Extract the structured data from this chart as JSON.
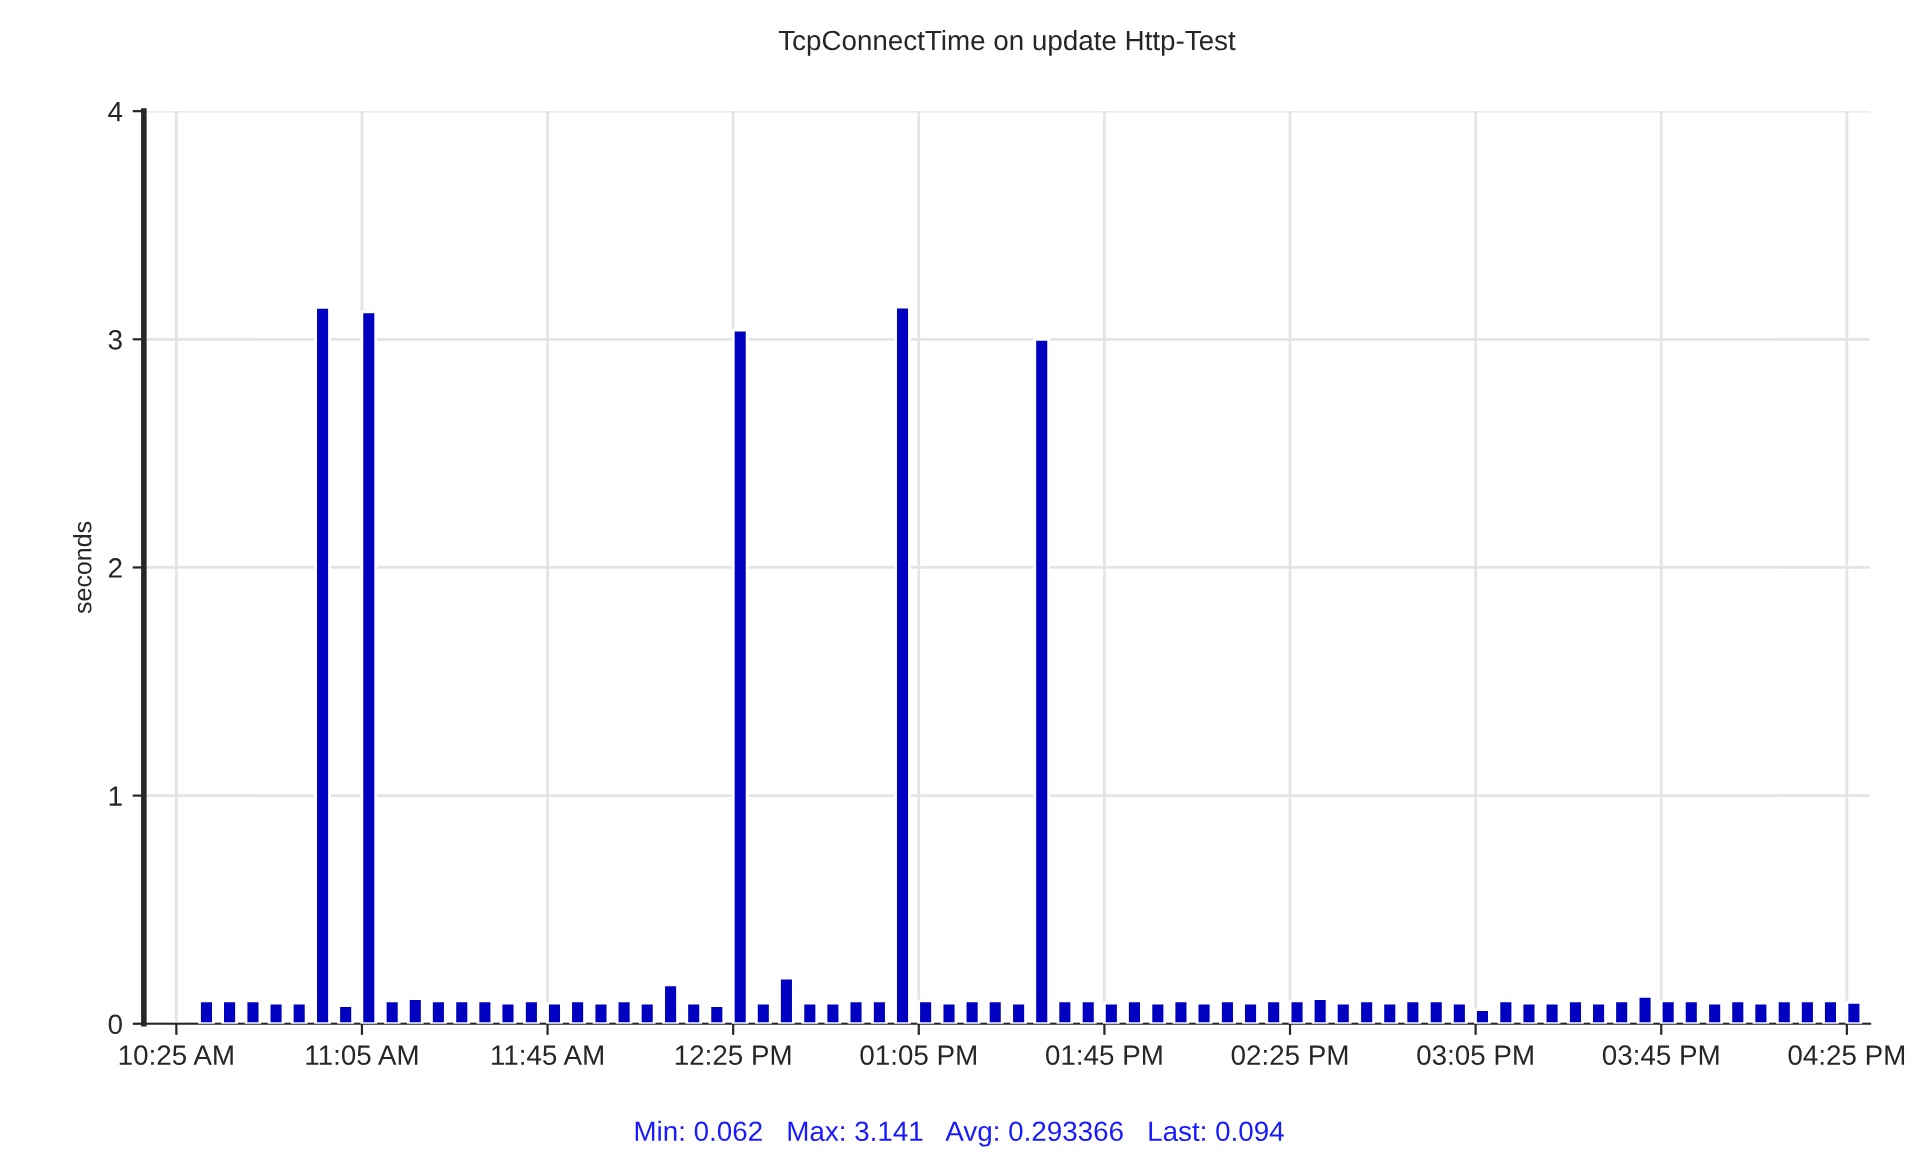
{
  "chart_data": {
    "type": "bar",
    "title": "TcpConnectTime on update Http-Test",
    "ylabel": "seconds",
    "x": [
      10.5,
      10.583,
      10.667,
      10.75,
      10.833,
      10.917,
      11.0,
      11.083,
      11.167,
      11.25,
      11.333,
      11.417,
      11.5,
      11.583,
      11.667,
      11.75,
      11.833,
      11.917,
      12.0,
      12.083,
      12.167,
      12.25,
      12.333,
      12.417,
      12.5,
      12.583,
      12.667,
      12.75,
      12.833,
      12.917,
      13.0,
      13.083,
      13.167,
      13.25,
      13.333,
      13.417,
      13.5,
      13.583,
      13.667,
      13.75,
      13.833,
      13.917,
      14.0,
      14.083,
      14.167,
      14.25,
      14.333,
      14.417,
      14.5,
      14.583,
      14.667,
      14.75,
      14.833,
      14.917,
      15.0,
      15.083,
      15.167,
      15.25,
      15.333,
      15.417,
      15.5,
      15.583,
      15.667,
      15.75,
      15.833,
      15.917,
      16.0,
      16.083,
      16.167,
      16.25,
      16.333,
      16.417
    ],
    "values": [
      0.1,
      0.1,
      0.1,
      0.09,
      0.09,
      3.14,
      0.08,
      3.12,
      0.1,
      0.11,
      0.1,
      0.1,
      0.1,
      0.09,
      0.1,
      0.09,
      0.1,
      0.09,
      0.1,
      0.09,
      0.17,
      0.09,
      0.08,
      3.04,
      0.09,
      0.2,
      0.09,
      0.09,
      0.1,
      0.1,
      3.141,
      0.1,
      0.09,
      0.1,
      0.1,
      0.09,
      3.0,
      0.1,
      0.1,
      0.09,
      0.1,
      0.09,
      0.1,
      0.09,
      0.1,
      0.09,
      0.1,
      0.1,
      0.11,
      0.09,
      0.1,
      0.09,
      0.1,
      0.1,
      0.09,
      0.062,
      0.1,
      0.09,
      0.09,
      0.1,
      0.09,
      0.1,
      0.12,
      0.1,
      0.1,
      0.09,
      0.1,
      0.09,
      0.1,
      0.1,
      0.1,
      0.094
    ],
    "color": "#0000c0",
    "ylim": [
      0,
      4
    ],
    "yticks": [
      0,
      1,
      2,
      3,
      4
    ],
    "xlim": [
      10.3,
      16.5
    ],
    "xticks": [
      {
        "value": 10.4167,
        "label": "10:25 AM"
      },
      {
        "value": 11.0833,
        "label": "11:05 AM"
      },
      {
        "value": 11.75,
        "label": "11:45 AM"
      },
      {
        "value": 12.4167,
        "label": "12:25 PM"
      },
      {
        "value": 13.0833,
        "label": "01:05 PM"
      },
      {
        "value": 13.75,
        "label": "01:45 PM"
      },
      {
        "value": 14.4167,
        "label": "02:25 PM"
      },
      {
        "value": 15.0833,
        "label": "03:05 PM"
      },
      {
        "value": 15.75,
        "label": "03:45 PM"
      },
      {
        "value": 16.4167,
        "label": "04:25 PM"
      }
    ],
    "grid": true,
    "annotations": [
      "Min: 0.062",
      "Max: 3.141",
      "Avg: 0.293366",
      "Last: 0.094"
    ]
  }
}
